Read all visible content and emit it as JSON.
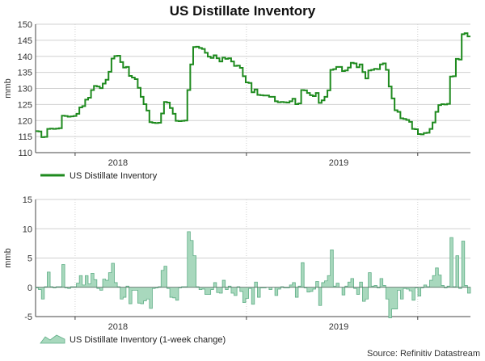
{
  "title": "US Distillate Inventory",
  "source": "Source: Refinitiv Datastream",
  "colors": {
    "line": "#1e8a1e",
    "area_fill": "#a8d8bd",
    "area_stroke": "#5fae86",
    "grid": "#d0d0d0",
    "axis": "#444444"
  },
  "chart_data": [
    {
      "type": "line",
      "name": "level",
      "ylabel": "mmb",
      "ylim": [
        110,
        150
      ],
      "yticks": [
        110,
        115,
        120,
        125,
        130,
        135,
        140,
        145,
        150
      ],
      "x_range": [
        0,
        132
      ],
      "x_tick_labels": [
        {
          "label": "2018",
          "x": 25
        },
        {
          "label": "2019",
          "x": 92
        }
      ],
      "year_boundaries": [
        12,
        64,
        116
      ],
      "series": [
        {
          "name": "US Distillate Inventory",
          "values": [
            116.7,
            116.6,
            114.8,
            114.9,
            117.4,
            117.5,
            117.4,
            117.5,
            117.6,
            121.5,
            121.4,
            121.2,
            121.3,
            121.4,
            122.1,
            124.1,
            124.5,
            126.5,
            127.1,
            129.5,
            130.8,
            130.6,
            130.1,
            131.5,
            132.7,
            135.2,
            139.3,
            140.1,
            140.2,
            138.2,
            136.5,
            136.7,
            133.9,
            133.4,
            132.9,
            130.2,
            127.4,
            125.1,
            123.1,
            119.5,
            119.3,
            119.2,
            119.3,
            122.2,
            125.8,
            125.6,
            123.9,
            122.1,
            119.9,
            119.8,
            119.9,
            120.0,
            129.5,
            137.5,
            142.9,
            143.0,
            142.6,
            142.3,
            141.1,
            139.9,
            139.5,
            140.3,
            139.4,
            138.4,
            139.6,
            139.2,
            139.4,
            138.4,
            137.0,
            137.1,
            136.4,
            133.8,
            131.9,
            131.7,
            128.8,
            129.7,
            128.0,
            127.9,
            127.8,
            127.8,
            127.4,
            127.4,
            126.0,
            125.7,
            125.8,
            125.7,
            125.6,
            126.0,
            126.8,
            125.1,
            125.3,
            129.5,
            129.4,
            128.6,
            127.9,
            127.6,
            128.6,
            125.5,
            126.3,
            127.4,
            129.4,
            135.8,
            136.0,
            136.7,
            136.7,
            135.4,
            135.6,
            136.5,
            138.0,
            137.8,
            136.6,
            137.5,
            135.1,
            133.1,
            135.6,
            135.8,
            136.1,
            136.0,
            137.5,
            137.8,
            135.8,
            130.6,
            126.9,
            123.2,
            122.7,
            120.7,
            120.5,
            120.2,
            119.6,
            117.4,
            117.3,
            115.8,
            115.7,
            116.1,
            116.2,
            117.4,
            119.4,
            122.7,
            124.8,
            125.1,
            125.0,
            125.2,
            133.7,
            133.8,
            139.2,
            139.0,
            146.9,
            147.2,
            146.2
          ]
        }
      ],
      "legend": {
        "label": "US Distillate Inventory",
        "position": "bottom-left"
      }
    },
    {
      "type": "area",
      "name": "change",
      "ylabel": "mmb",
      "ylim": [
        -5,
        15
      ],
      "yticks": [
        -5,
        0,
        5,
        10,
        15
      ],
      "x_range": [
        0,
        132
      ],
      "x_tick_labels": [
        {
          "label": "2018",
          "x": 25
        },
        {
          "label": "2019",
          "x": 92
        }
      ],
      "series": [
        {
          "name": "US Distillate Inventory (1-week change)",
          "values": [
            -0.1,
            -0.4,
            -2.0,
            0.1,
            2.6,
            0.1,
            -0.1,
            0.1,
            0.1,
            3.9,
            -0.1,
            -0.2,
            0.1,
            0.1,
            0.7,
            2.0,
            0.4,
            2.0,
            0.6,
            2.4,
            1.3,
            -0.2,
            -0.5,
            1.4,
            1.2,
            2.5,
            4.1,
            0.8,
            0.1,
            -2.0,
            -1.7,
            0.2,
            -2.8,
            -0.5,
            -0.5,
            -2.7,
            -2.8,
            -2.3,
            -2.0,
            -3.6,
            -0.2,
            -0.1,
            0.1,
            2.9,
            3.6,
            -0.2,
            -1.7,
            -1.8,
            -2.2,
            -0.1,
            0.1,
            0.1,
            9.5,
            8.0,
            5.4,
            0.1,
            -0.4,
            -0.3,
            -1.2,
            -1.2,
            -0.4,
            0.8,
            -0.9,
            -1.0,
            1.2,
            -0.4,
            0.2,
            -1.0,
            -1.4,
            0.1,
            -0.7,
            -2.6,
            -1.9,
            -0.2,
            -2.9,
            0.9,
            -1.7,
            -0.1,
            -0.1,
            0.0,
            -0.4,
            0.0,
            -1.4,
            -0.3,
            0.1,
            -0.1,
            -0.1,
            0.4,
            0.8,
            -1.7,
            0.2,
            4.2,
            -0.1,
            -0.8,
            -0.7,
            -0.3,
            1.0,
            -3.1,
            0.8,
            1.1,
            2.0,
            6.4,
            0.2,
            0.7,
            0.0,
            -1.3,
            0.2,
            0.9,
            1.5,
            -0.2,
            -1.2,
            0.9,
            -2.4,
            -2.0,
            2.5,
            0.2,
            0.3,
            -0.1,
            1.5,
            0.3,
            -2.0,
            -5.2,
            -3.7,
            -3.7,
            -0.5,
            -2.0,
            -0.2,
            -0.3,
            -0.6,
            -2.2,
            -0.1,
            -1.5,
            -0.1,
            0.4,
            0.1,
            1.2,
            2.0,
            3.3,
            2.1,
            0.3,
            -0.1,
            0.2,
            8.5,
            0.1,
            5.4,
            -0.2,
            7.9,
            0.3,
            -1.0
          ]
        }
      ],
      "legend": {
        "label": "US Distillate Inventory (1-week change)",
        "position": "bottom-left"
      }
    }
  ]
}
